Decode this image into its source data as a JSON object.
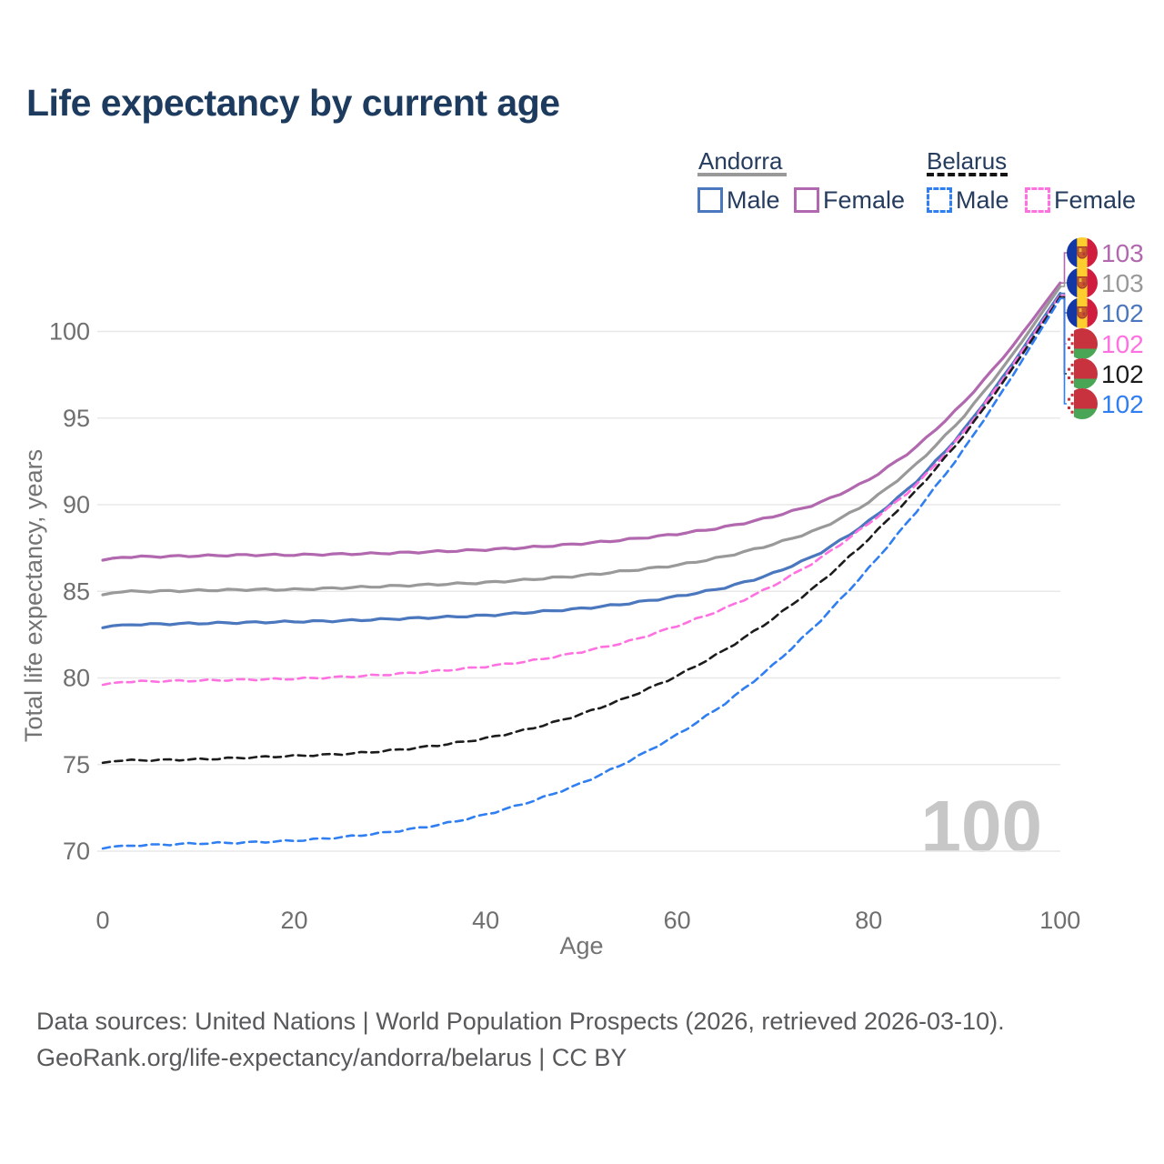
{
  "title": "Life expectancy by current age",
  "legend": {
    "groups": [
      {
        "country": "Andorra",
        "line_style": "solid",
        "sample_color": "#999999",
        "items": [
          {
            "label": "Male",
            "color": "#4a77bd"
          },
          {
            "label": "Female",
            "color": "#b168ae"
          }
        ]
      },
      {
        "country": "Belarus",
        "line_style": "dashed",
        "sample_color": "#141414",
        "items": [
          {
            "label": "Male",
            "color": "#2f7ef2"
          },
          {
            "label": "Female",
            "color": "#ff70e0"
          }
        ]
      }
    ]
  },
  "chart_data": {
    "type": "line",
    "title": "Life expectancy by current age",
    "xlabel": "Age",
    "ylabel": "Total life expectancy, years",
    "x_ticks": [
      0,
      20,
      40,
      60,
      80,
      100
    ],
    "y_ticks": [
      70,
      75,
      80,
      85,
      90,
      95,
      100
    ],
    "xlim": [
      0,
      100
    ],
    "ylim": [
      68,
      104
    ],
    "grid": "horizontal",
    "watermark": "100",
    "x_step": 5,
    "x": [
      0,
      5,
      10,
      15,
      20,
      25,
      30,
      35,
      40,
      45,
      50,
      55,
      60,
      65,
      70,
      75,
      80,
      85,
      90,
      95,
      100
    ],
    "series": [
      {
        "id": "andorra-female",
        "country": "Andorra",
        "label": "Female",
        "color": "#b168ae",
        "dashed": false,
        "flag": "andorra",
        "end_label": "103",
        "values": [
          86.8,
          87.0,
          87.05,
          87.1,
          87.1,
          87.15,
          87.2,
          87.3,
          87.4,
          87.55,
          87.75,
          88.0,
          88.3,
          88.7,
          89.3,
          90.1,
          91.4,
          93.3,
          95.9,
          99.1,
          102.8
        ]
      },
      {
        "id": "andorra-total",
        "country": "Andorra",
        "label": "Total",
        "color": "#999999",
        "dashed": false,
        "flag": "andorra",
        "end_label": "103",
        "values": [
          84.8,
          85.0,
          85.05,
          85.1,
          85.1,
          85.2,
          85.3,
          85.4,
          85.5,
          85.7,
          85.9,
          86.2,
          86.5,
          87.0,
          87.7,
          88.6,
          90.1,
          92.3,
          95.1,
          98.6,
          102.6
        ]
      },
      {
        "id": "andorra-male",
        "country": "Andorra",
        "label": "Male",
        "color": "#4a77bd",
        "dashed": false,
        "flag": "andorra",
        "end_label": "102",
        "values": [
          82.9,
          83.1,
          83.15,
          83.2,
          83.25,
          83.3,
          83.4,
          83.5,
          83.6,
          83.8,
          84.0,
          84.3,
          84.7,
          85.2,
          86.0,
          87.2,
          89.0,
          91.3,
          94.3,
          98.1,
          102.2
        ]
      },
      {
        "id": "belarus-female",
        "country": "Belarus",
        "label": "Female",
        "color": "#ff70e0",
        "dashed": true,
        "flag": "belarus",
        "end_label": "102",
        "values": [
          79.6,
          79.8,
          79.85,
          79.9,
          79.95,
          80.05,
          80.2,
          80.4,
          80.65,
          81.0,
          81.5,
          82.1,
          83.0,
          84.0,
          85.3,
          86.9,
          88.9,
          91.1,
          94.2,
          98.0,
          102.1
        ]
      },
      {
        "id": "belarus-total",
        "country": "Belarus",
        "label": "Total",
        "color": "#1c1c1c",
        "dashed": true,
        "flag": "belarus",
        "end_label": "102",
        "values": [
          75.1,
          75.25,
          75.3,
          75.4,
          75.5,
          75.6,
          75.8,
          76.1,
          76.5,
          77.1,
          77.9,
          78.9,
          80.1,
          81.6,
          83.4,
          85.5,
          88.0,
          90.8,
          94.0,
          97.8,
          102.0
        ]
      },
      {
        "id": "belarus-male",
        "country": "Belarus",
        "label": "Male",
        "color": "#2f7ef2",
        "dashed": true,
        "flag": "belarus",
        "end_label": "102",
        "values": [
          70.15,
          70.35,
          70.45,
          70.5,
          70.6,
          70.8,
          71.1,
          71.5,
          72.1,
          72.9,
          73.9,
          75.2,
          76.7,
          78.5,
          80.7,
          83.3,
          86.3,
          89.6,
          93.2,
          97.4,
          101.9
        ]
      }
    ],
    "flag_colors": {
      "andorra": {
        "blue": "#1437a6",
        "yellow": "#ffcd2e",
        "red": "#d01c3f",
        "shield": "#c75b2a",
        "shield_dark": "#a23b28"
      },
      "belarus": {
        "red": "#c8313e",
        "green": "#4aa657",
        "white": "#ffffff"
      }
    },
    "style": {
      "grid_color": "#e8e8e8",
      "tick_color": "#6f6f6f",
      "axis_title_color": "#737373",
      "watermark_color": "#c7c7c7"
    }
  },
  "footer": {
    "line1": "Data sources: United Nations | World Population Prospects (2026, retrieved 2026-03-10).",
    "line2": "GeoRank.org/life-expectancy/andorra/belarus | CC BY"
  }
}
